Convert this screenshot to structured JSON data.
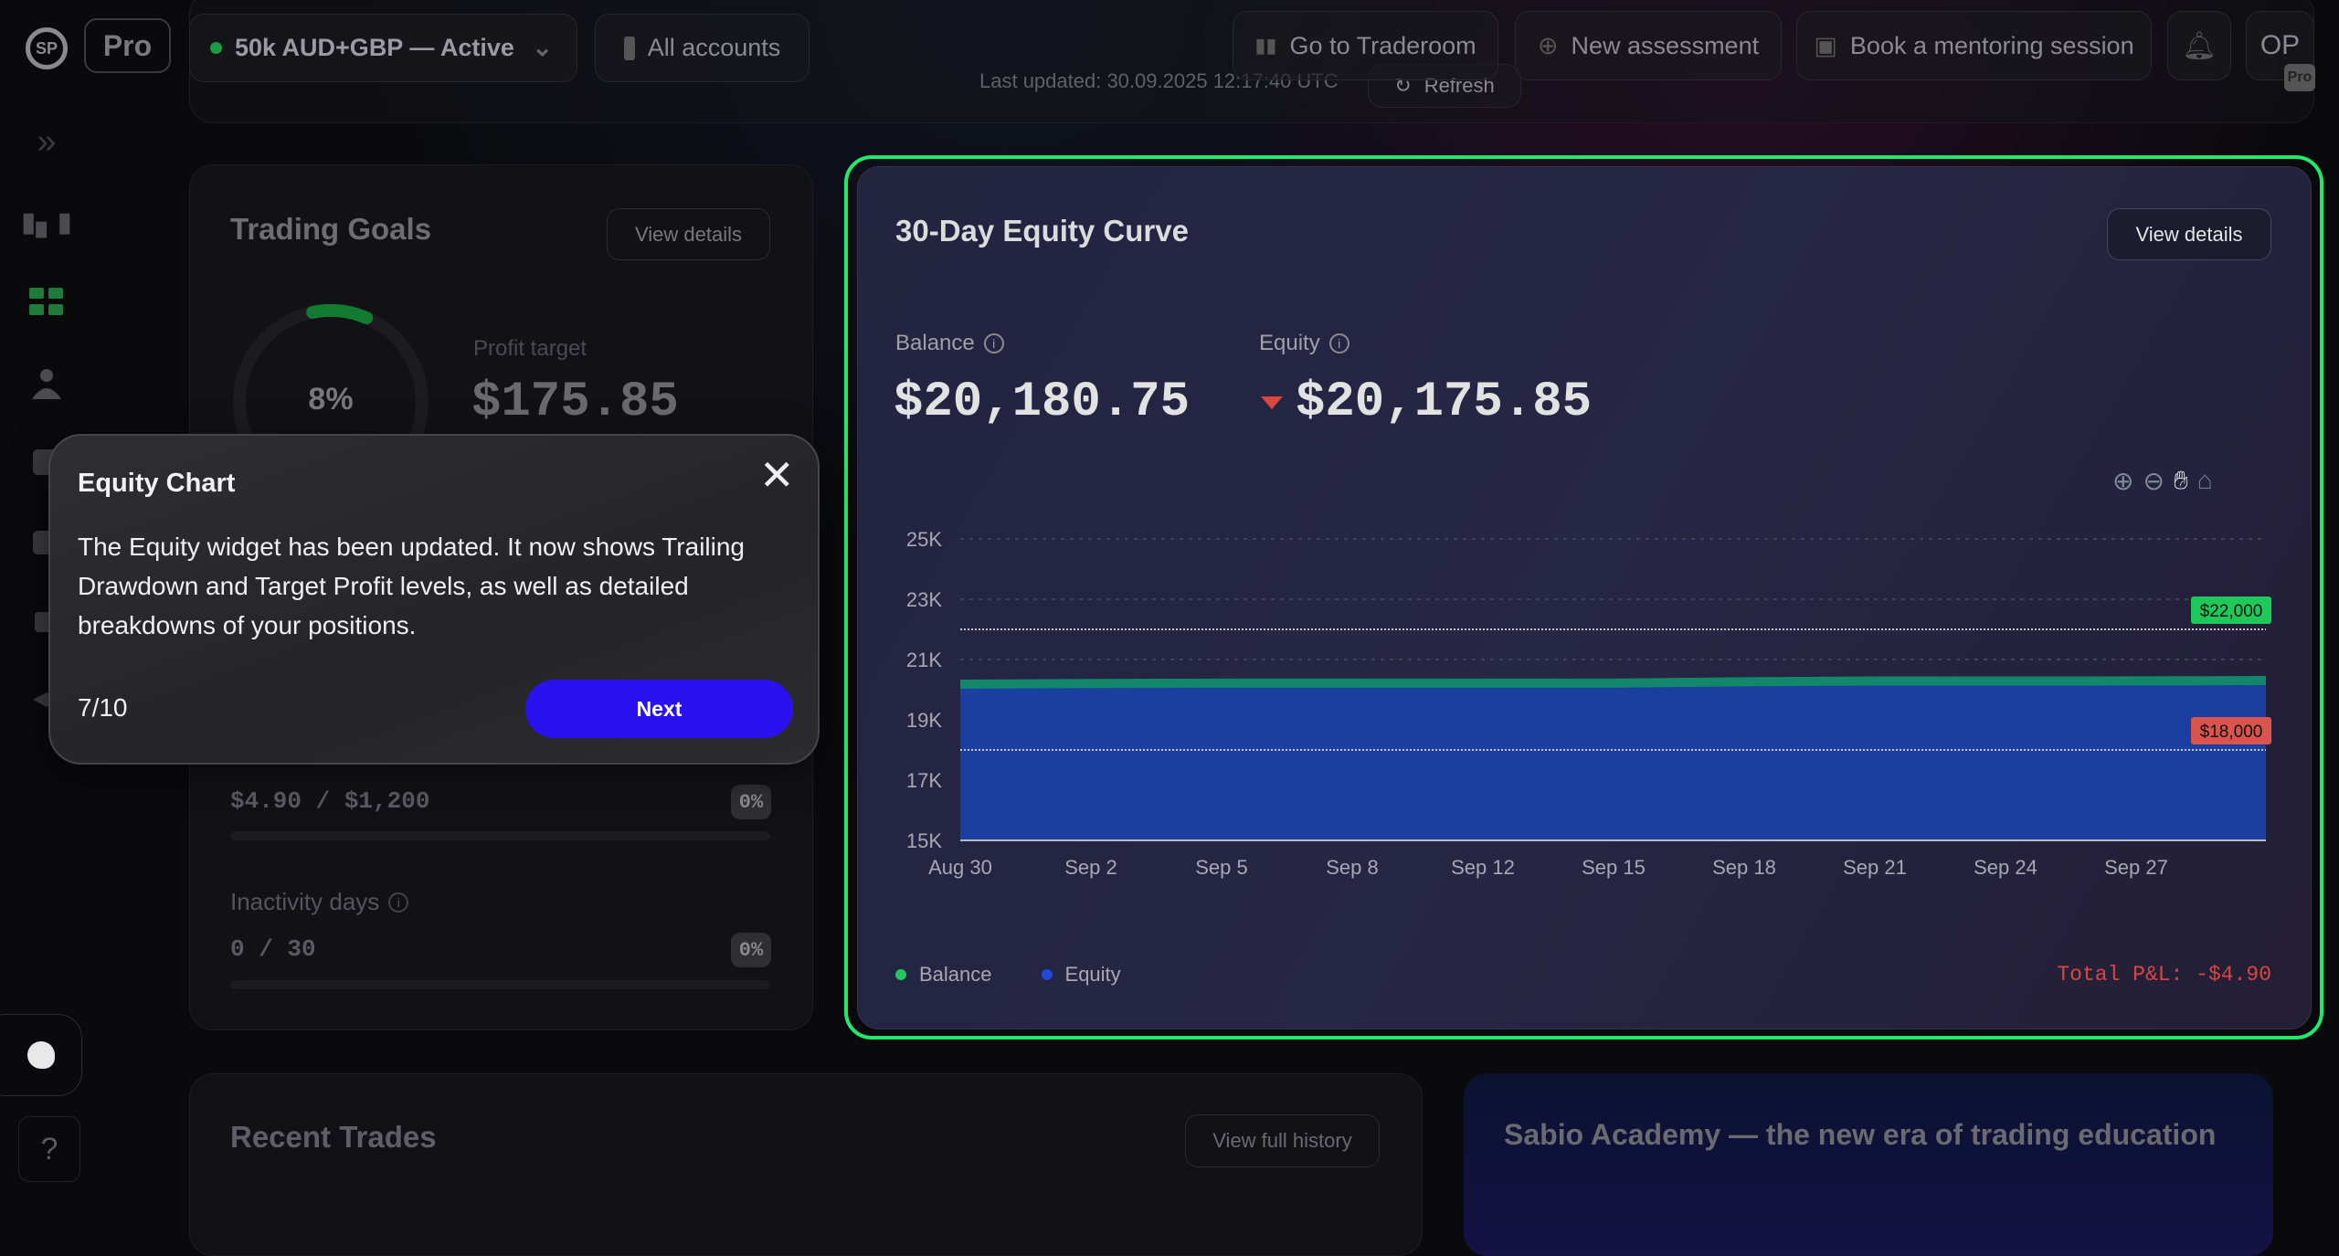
{
  "header": {
    "logo_text": "SP",
    "plan_badge": "Pro",
    "account": {
      "label": "50k AUD+GBP — Active",
      "status_color": "#22c55e"
    },
    "all_accounts": "All accounts",
    "last_updated": "Last updated: 30.09.2025 12:17:40 UTC",
    "refresh": "Refresh",
    "traderoom": "Go to Traderoom",
    "new_assessment": "New assessment",
    "mentoring": "Book a mentoring session",
    "avatar": "OP",
    "avatar_badge": "Pro"
  },
  "sidebar": {
    "help": "?"
  },
  "trading_goals": {
    "title": "Trading Goals",
    "view_details": "View details",
    "progress_percent_label": "8%",
    "progress_fraction": 0.08,
    "profit_target_label": "Profit target",
    "profit_target_value": "$175.85",
    "loss_value": "$4.90 / $1,200",
    "loss_badge": "0%",
    "inactivity_label": "Inactivity days",
    "inactivity_value": "0 / 30",
    "inactivity_badge": "0%"
  },
  "equity_card": {
    "title": "30-Day Equity Curve",
    "view_details": "View details",
    "balance_label": "Balance",
    "balance_value": "$20,180.75",
    "equity_label": "Equity",
    "equity_value": "$20,175.85",
    "total_pnl": "Total P&L: -$4.90",
    "legend": [
      {
        "label": "Balance",
        "color": "#22c55e"
      },
      {
        "label": "Equity",
        "color": "#2347d6"
      }
    ]
  },
  "chart_data": {
    "type": "area",
    "title": "30-Day Equity Curve",
    "x_ticks": [
      "Aug 30",
      "Sep 2",
      "Sep 5",
      "Sep 8",
      "Sep 12",
      "Sep 15",
      "Sep 18",
      "Sep 21",
      "Sep 24",
      "Sep 27"
    ],
    "y_ticks": [
      "25K",
      "23K",
      "21K",
      "19K",
      "17K",
      "15K"
    ],
    "y_tick_values": [
      25000,
      23000,
      21000,
      19000,
      17000,
      15000
    ],
    "ylim": [
      15000,
      25000
    ],
    "series": [
      {
        "name": "Balance",
        "color": "#12876a",
        "x": [
          0,
          1,
          2,
          3,
          4,
          5,
          6,
          7,
          8,
          9,
          10
        ],
        "values": [
          20060,
          20085,
          20095,
          20095,
          20095,
          20095,
          20140,
          20165,
          20165,
          20170,
          20180
        ]
      },
      {
        "name": "Equity",
        "color": "#1a3fa0",
        "x": [
          0,
          1,
          2,
          3,
          4,
          5,
          6,
          7,
          8,
          9,
          10
        ],
        "values": [
          20055,
          20080,
          20090,
          20090,
          20090,
          20090,
          20135,
          20160,
          20160,
          20165,
          20175
        ]
      }
    ],
    "levels": [
      {
        "label": "$22,000",
        "value": 22000,
        "color": "#1ec95a"
      },
      {
        "label": "$18,000",
        "value": 18000,
        "color": "#d9534f"
      }
    ],
    "grid": true
  },
  "tour": {
    "title": "Equity Chart",
    "body": "The Equity widget has been updated. It now shows Trailing Drawdown and Target Profit levels, as well as detailed breakdowns of your positions.",
    "step": "7/10",
    "next": "Next"
  },
  "recent_trades": {
    "title": "Recent Trades",
    "view_history": "View full history"
  },
  "academy": {
    "title": "Sabio Academy — the new era of trading education"
  }
}
